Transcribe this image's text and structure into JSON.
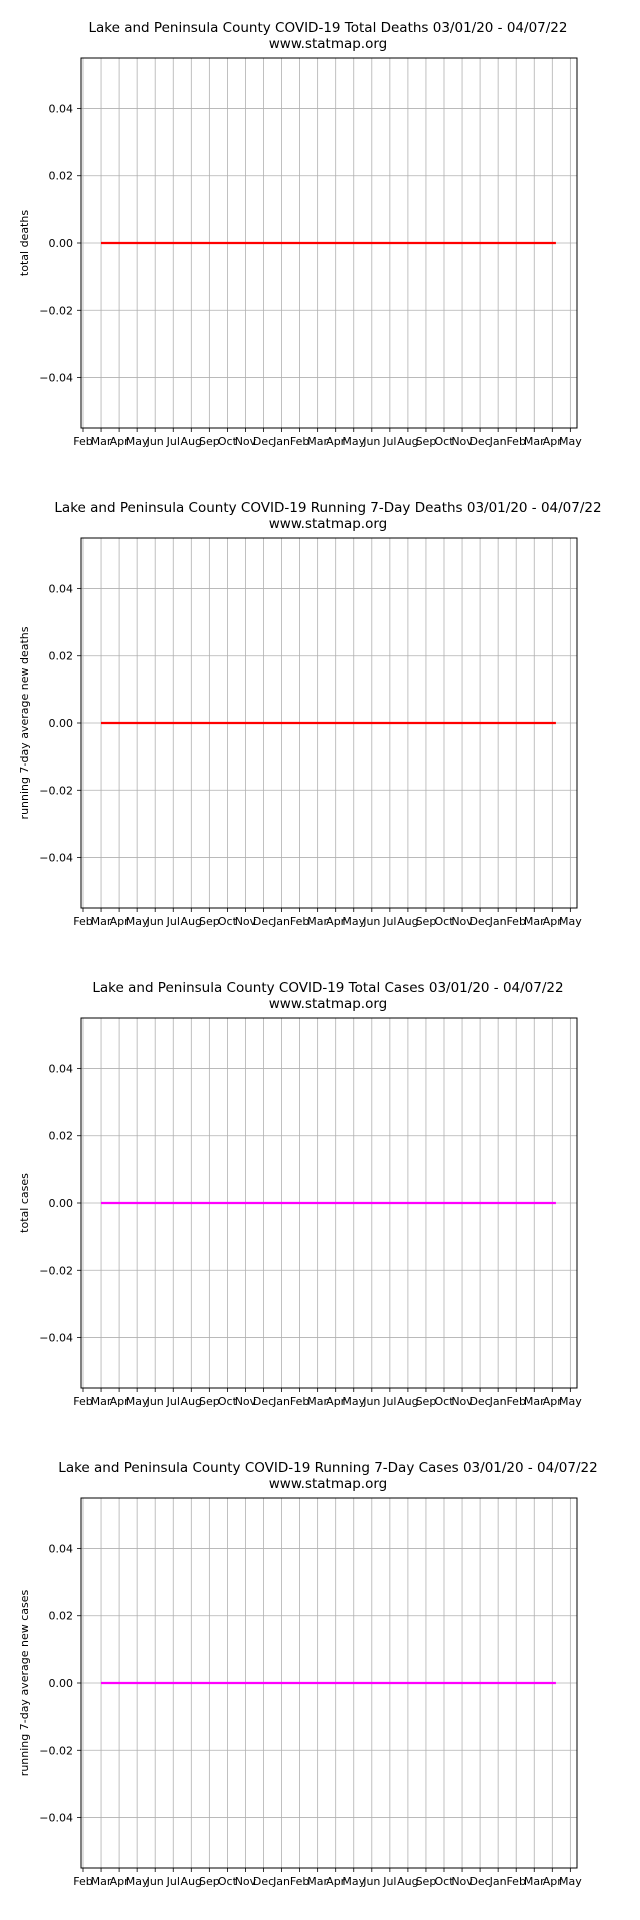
{
  "chart_data": [
    {
      "type": "line",
      "title": "Lake and Peninsula County COVID-19 Total Deaths 03/01/20 - 04/07/22",
      "subtitle": "www.statmap.org",
      "xlabel": "",
      "ylabel": "total deaths",
      "x_tick_labels": [
        "Feb",
        "Mar",
        "Apr",
        "May",
        "Jun",
        "Jul",
        "Aug",
        "Sep",
        "Oct",
        "Nov",
        "Dec",
        "Jan",
        "Feb",
        "Mar",
        "Apr",
        "May",
        "Jun",
        "Jul",
        "Aug",
        "Sep",
        "Oct",
        "Nov",
        "Dec",
        "Jan",
        "Feb",
        "Mar",
        "Apr",
        "May"
      ],
      "y_tick_labels": [
        "0.04",
        "0.02",
        "0.00",
        "−0.02",
        "−0.04"
      ],
      "ylim": [
        -0.055,
        0.055
      ],
      "x_range": [
        "2020-03-01",
        "2022-04-07"
      ],
      "grid": true,
      "series": [
        {
          "color": "#ff0000",
          "x": [
            "2020-03-01",
            "2022-04-07"
          ],
          "values": [
            0,
            0
          ]
        }
      ]
    },
    {
      "type": "line",
      "title": "Lake and Peninsula County COVID-19 Running 7-Day Deaths 03/01/20 - 04/07/22",
      "subtitle": "www.statmap.org",
      "xlabel": "",
      "ylabel": "running 7-day average new deaths",
      "x_tick_labels": [
        "Feb",
        "Mar",
        "Apr",
        "May",
        "Jun",
        "Jul",
        "Aug",
        "Sep",
        "Oct",
        "Nov",
        "Dec",
        "Jan",
        "Feb",
        "Mar",
        "Apr",
        "May",
        "Jun",
        "Jul",
        "Aug",
        "Sep",
        "Oct",
        "Nov",
        "Dec",
        "Jan",
        "Feb",
        "Mar",
        "Apr",
        "May"
      ],
      "y_tick_labels": [
        "0.04",
        "0.02",
        "0.00",
        "−0.02",
        "−0.04"
      ],
      "ylim": [
        -0.055,
        0.055
      ],
      "x_range": [
        "2020-03-01",
        "2022-04-07"
      ],
      "grid": true,
      "series": [
        {
          "color": "#ff0000",
          "x": [
            "2020-03-01",
            "2022-04-07"
          ],
          "values": [
            0,
            0
          ]
        }
      ]
    },
    {
      "type": "line",
      "title": "Lake and Peninsula County COVID-19 Total Cases 03/01/20 - 04/07/22",
      "subtitle": "www.statmap.org",
      "xlabel": "",
      "ylabel": "total cases",
      "x_tick_labels": [
        "Feb",
        "Mar",
        "Apr",
        "May",
        "Jun",
        "Jul",
        "Aug",
        "Sep",
        "Oct",
        "Nov",
        "Dec",
        "Jan",
        "Feb",
        "Mar",
        "Apr",
        "May",
        "Jun",
        "Jul",
        "Aug",
        "Sep",
        "Oct",
        "Nov",
        "Dec",
        "Jan",
        "Feb",
        "Mar",
        "Apr",
        "May"
      ],
      "y_tick_labels": [
        "0.04",
        "0.02",
        "0.00",
        "−0.02",
        "−0.04"
      ],
      "ylim": [
        -0.055,
        0.055
      ],
      "x_range": [
        "2020-03-01",
        "2022-04-07"
      ],
      "grid": true,
      "series": [
        {
          "color": "#ff00ff",
          "x": [
            "2020-03-01",
            "2022-04-07"
          ],
          "values": [
            0,
            0
          ]
        }
      ]
    },
    {
      "type": "line",
      "title": "Lake and Peninsula County COVID-19 Running 7-Day Cases 03/01/20 - 04/07/22",
      "subtitle": "www.statmap.org",
      "xlabel": "",
      "ylabel": "running 7-day average new cases",
      "x_tick_labels": [
        "Feb",
        "Mar",
        "Apr",
        "May",
        "Jun",
        "Jul",
        "Aug",
        "Sep",
        "Oct",
        "Nov",
        "Dec",
        "Jan",
        "Feb",
        "Mar",
        "Apr",
        "May",
        "Jun",
        "Jul",
        "Aug",
        "Sep",
        "Oct",
        "Nov",
        "Dec",
        "Jan",
        "Feb",
        "Mar",
        "Apr",
        "May"
      ],
      "y_tick_labels": [
        "0.04",
        "0.02",
        "0.00",
        "−0.02",
        "−0.04"
      ],
      "ylim": [
        -0.055,
        0.055
      ],
      "x_range": [
        "2020-03-01",
        "2022-04-07"
      ],
      "grid": true,
      "series": [
        {
          "color": "#ff00ff",
          "x": [
            "2020-03-01",
            "2022-04-07"
          ],
          "values": [
            0,
            0
          ]
        }
      ]
    }
  ]
}
